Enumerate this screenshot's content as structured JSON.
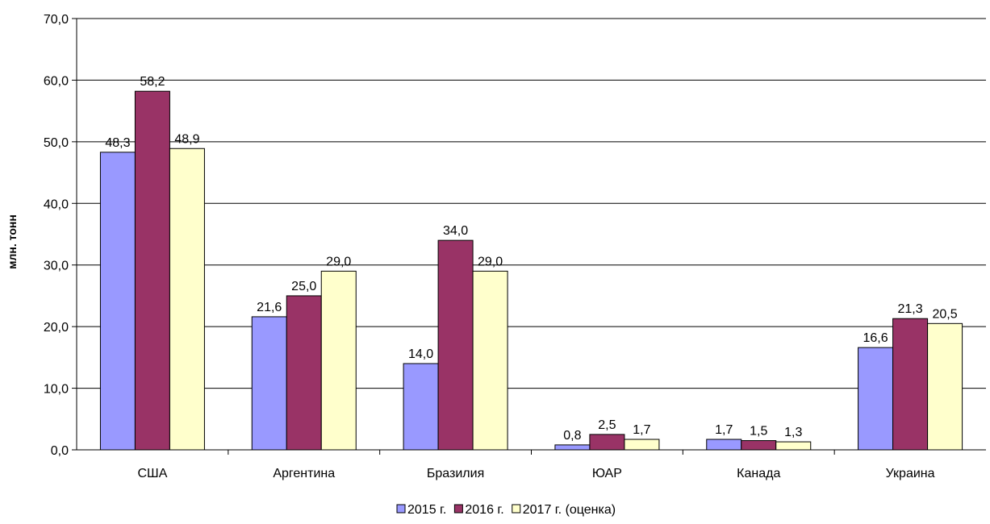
{
  "chart_data": {
    "type": "bar",
    "title": "",
    "xlabel": "",
    "ylabel": "млн. тонн",
    "ylim": [
      0,
      70
    ],
    "yticks": [
      "0,0",
      "10,0",
      "20,0",
      "30,0",
      "40,0",
      "50,0",
      "60,0",
      "70,0"
    ],
    "grid": true,
    "legend_position": "bottom",
    "categories": [
      "США",
      "Аргентина",
      "Бразилия",
      "ЮАР",
      "Канада",
      "Украина"
    ],
    "series": [
      {
        "name": "2015 г.",
        "color": "#9999ff",
        "values": [
          48.3,
          21.6,
          14.0,
          0.8,
          1.7,
          16.6
        ],
        "labels": [
          "48,3",
          "21,6",
          "14,0",
          "0,8",
          "1,7",
          "16,6"
        ]
      },
      {
        "name": "2016 г.",
        "color": "#993366",
        "values": [
          58.2,
          25.0,
          34.0,
          2.5,
          1.5,
          21.3
        ],
        "labels": [
          "58,2",
          "25,0",
          "34,0",
          "2,5",
          "1,5",
          "21,3"
        ]
      },
      {
        "name": "2017 г. (оценка)",
        "color": "#ffffcc",
        "values": [
          48.9,
          29.0,
          29.0,
          1.7,
          1.3,
          20.5
        ],
        "labels": [
          "48,9",
          "29,0",
          "29,0",
          "1,7",
          "1,3",
          "20,5"
        ]
      }
    ]
  }
}
